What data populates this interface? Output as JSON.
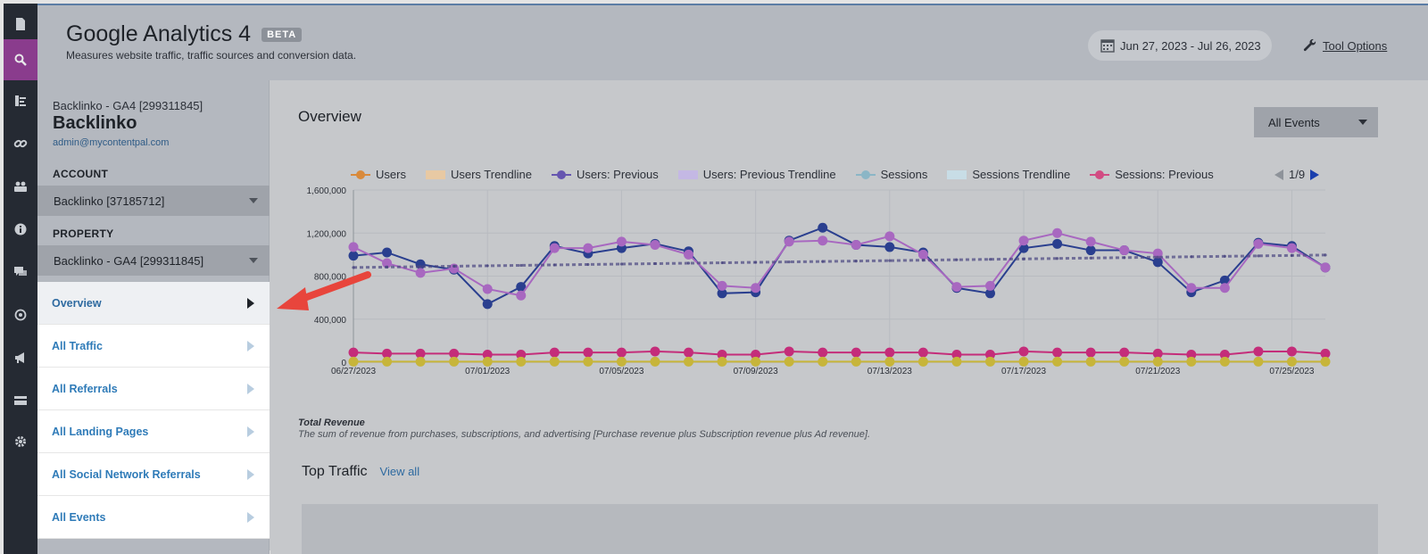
{
  "header": {
    "title": "Google Analytics 4",
    "beta": "BETA",
    "subtitle": "Measures website traffic, traffic sources and conversion data.",
    "date_range": "Jun 27, 2023 - Jul 26, 2023",
    "tool_options": "Tool Options"
  },
  "rail": {
    "icons": [
      "page-icon",
      "search-icon",
      "bar-list-icon",
      "link-icon",
      "people-icon",
      "info-icon",
      "chat-icon",
      "location-icon",
      "megaphone-icon",
      "card-icon",
      "gear-icon"
    ],
    "active_index": 1
  },
  "account": {
    "property_line": "Backlinko - GA4 [299311845]",
    "name": "Backlinko",
    "email": "admin@mycontentpal.com",
    "account_label": "ACCOUNT",
    "account_value": "Backlinko [37185712]",
    "property_label": "PROPERTY",
    "property_value": "Backlinko - GA4 [299311845]"
  },
  "nav": {
    "items": [
      "Overview",
      "All Traffic",
      "All Referrals",
      "All Landing Pages",
      "All Social Network Referrals",
      "All Events"
    ],
    "active_index": 0
  },
  "main": {
    "title": "Overview",
    "events_dropdown": "All Events",
    "pager": "1/9",
    "total_revenue_label": "Total Revenue",
    "total_revenue_desc": "The sum of revenue from purchases, subscriptions, and advertising [Purchase revenue plus Subscription revenue plus Ad revenue].",
    "top_traffic": "Top Traffic",
    "view_all": "View all"
  },
  "legend": [
    {
      "label": "Users",
      "kind": "line",
      "color": "#d98a3b"
    },
    {
      "label": "Users Trendline",
      "kind": "box",
      "color": "#e8c9a3"
    },
    {
      "label": "Users: Previous",
      "kind": "line",
      "color": "#6656b0"
    },
    {
      "label": "Users: Previous Trendline",
      "kind": "box",
      "color": "#c4b8e4"
    },
    {
      "label": "Sessions",
      "kind": "line",
      "color": "#8bb6c6"
    },
    {
      "label": "Sessions Trendline",
      "kind": "box",
      "color": "#c8dde6"
    },
    {
      "label": "Sessions: Previous",
      "kind": "line",
      "color": "#d24b82"
    }
  ],
  "chart_data": {
    "type": "line",
    "ylim": [
      0,
      1600000
    ],
    "yticks": [
      0,
      400000,
      800000,
      1200000,
      1600000
    ],
    "ytick_labels": [
      "0",
      "400,000",
      "800,000",
      "1,200,000",
      "1,600,000"
    ],
    "x": [
      "06/27/2023",
      "06/28/2023",
      "06/29/2023",
      "06/30/2023",
      "07/01/2023",
      "07/02/2023",
      "07/03/2023",
      "07/04/2023",
      "07/05/2023",
      "07/06/2023",
      "07/07/2023",
      "07/08/2023",
      "07/09/2023",
      "07/10/2023",
      "07/11/2023",
      "07/12/2023",
      "07/13/2023",
      "07/14/2023",
      "07/15/2023",
      "07/16/2023",
      "07/17/2023",
      "07/18/2023",
      "07/19/2023",
      "07/20/2023",
      "07/21/2023",
      "07/22/2023",
      "07/23/2023",
      "07/24/2023",
      "07/25/2023",
      "07/26/2023"
    ],
    "xtick_labels": [
      "06/27/2023",
      "07/01/2023",
      "07/05/2023",
      "07/09/2023",
      "07/13/2023",
      "07/17/2023",
      "07/21/2023",
      "07/25/2023"
    ],
    "series": [
      {
        "name": "Users",
        "color": "#2a3f8f",
        "values": [
          990000,
          1020000,
          910000,
          860000,
          540000,
          700000,
          1080000,
          1010000,
          1060000,
          1100000,
          1030000,
          640000,
          650000,
          1130000,
          1250000,
          1090000,
          1070000,
          1020000,
          690000,
          640000,
          1060000,
          1100000,
          1040000,
          1040000,
          930000,
          650000,
          760000,
          1110000,
          1080000,
          880000
        ]
      },
      {
        "name": "Users: Previous",
        "color": "#a868c0",
        "values": [
          1070000,
          920000,
          830000,
          870000,
          680000,
          620000,
          1060000,
          1060000,
          1120000,
          1090000,
          1000000,
          710000,
          690000,
          1120000,
          1130000,
          1090000,
          1170000,
          1000000,
          700000,
          710000,
          1130000,
          1200000,
          1120000,
          1040000,
          1010000,
          690000,
          690000,
          1100000,
          1060000,
          880000
        ]
      },
      {
        "name": "Users Trendline",
        "color": "#4a4680",
        "values": [
          880000,
          884000,
          888000,
          892000,
          896000,
          900000,
          904000,
          908000,
          912000,
          916000,
          920000,
          924000,
          928000,
          932000,
          936000,
          940000,
          944000,
          948000,
          952000,
          956000,
          960000,
          964000,
          968000,
          972000,
          976000,
          980000,
          984000,
          988000,
          992000,
          996000
        ]
      },
      {
        "name": "Sessions: Previous",
        "color": "#c42d7a",
        "values": [
          90000,
          80000,
          80000,
          80000,
          70000,
          70000,
          90000,
          90000,
          90000,
          100000,
          90000,
          70000,
          70000,
          100000,
          90000,
          90000,
          90000,
          90000,
          70000,
          70000,
          100000,
          90000,
          90000,
          90000,
          80000,
          70000,
          70000,
          100000,
          100000,
          80000
        ]
      },
      {
        "name": "Sessions",
        "color": "#c7b53a",
        "values": [
          5000,
          5000,
          5000,
          5000,
          5000,
          5000,
          5000,
          5000,
          5000,
          5000,
          5000,
          5000,
          5000,
          5000,
          5000,
          5000,
          5000,
          5000,
          5000,
          5000,
          5000,
          5000,
          5000,
          5000,
          5000,
          5000,
          5000,
          5000,
          5000,
          5000
        ]
      }
    ]
  }
}
